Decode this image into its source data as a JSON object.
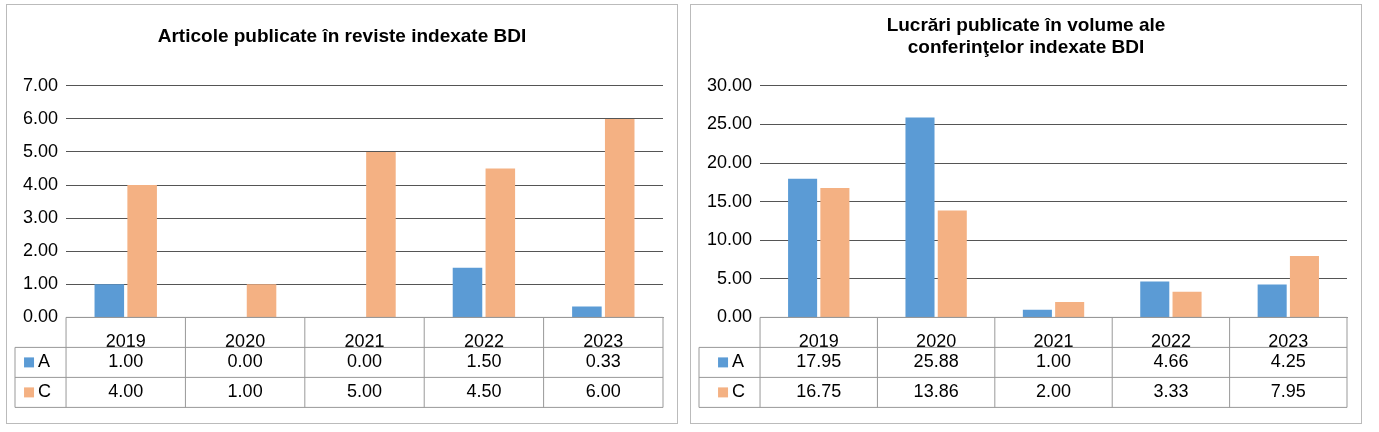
{
  "chart_data": [
    {
      "type": "bar",
      "title": "Articole publicate în reviste indexate BDI",
      "categories": [
        "2019",
        "2020",
        "2021",
        "2022",
        "2023"
      ],
      "series": [
        {
          "name": "A",
          "color": "#5b9bd5",
          "values": [
            1.0,
            0.0,
            0.0,
            1.5,
            0.33
          ],
          "value_labels": [
            "1.00",
            "0.00",
            "0.00",
            "1.50",
            "0.33"
          ]
        },
        {
          "name": "C",
          "color": "#f4b183",
          "values": [
            4.0,
            1.0,
            5.0,
            4.5,
            6.0
          ],
          "value_labels": [
            "4.00",
            "1.00",
            "5.00",
            "4.50",
            "6.00"
          ]
        }
      ],
      "ylim": [
        0,
        7
      ],
      "yticks": [
        {
          "value": 0,
          "label": "0.00"
        },
        {
          "value": 1,
          "label": "1.00"
        },
        {
          "value": 2,
          "label": "2.00"
        },
        {
          "value": 3,
          "label": "3.00"
        },
        {
          "value": 4,
          "label": "4.00"
        },
        {
          "value": 5,
          "label": "5.00"
        },
        {
          "value": 6,
          "label": "6.00"
        },
        {
          "value": 7,
          "label": "7.00"
        }
      ],
      "grid": "y",
      "legend": "bottom"
    },
    {
      "type": "bar",
      "title": "Lucrări publicate în volume ale conferinţelor indexate BDI",
      "categories": [
        "2019",
        "2020",
        "2021",
        "2022",
        "2023"
      ],
      "series": [
        {
          "name": "A",
          "color": "#5b9bd5",
          "values": [
            17.95,
            25.88,
            1.0,
            4.66,
            4.25
          ],
          "value_labels": [
            "17.95",
            "25.88",
            "1.00",
            "4.66",
            "4.25"
          ]
        },
        {
          "name": "C",
          "color": "#f4b183",
          "values": [
            16.75,
            13.86,
            2.0,
            3.33,
            7.95
          ],
          "value_labels": [
            "16.75",
            "13.86",
            "2.00",
            "3.33",
            "7.95"
          ]
        }
      ],
      "ylim": [
        0,
        30
      ],
      "yticks": [
        {
          "value": 0,
          "label": "0.00"
        },
        {
          "value": 5,
          "label": "5.00"
        },
        {
          "value": 10,
          "label": "10.00"
        },
        {
          "value": 15,
          "label": "15.00"
        },
        {
          "value": 20,
          "label": "20.00"
        },
        {
          "value": 25,
          "label": "25.00"
        },
        {
          "value": 30,
          "label": "30.00"
        }
      ],
      "grid": "y",
      "legend": "bottom"
    }
  ]
}
